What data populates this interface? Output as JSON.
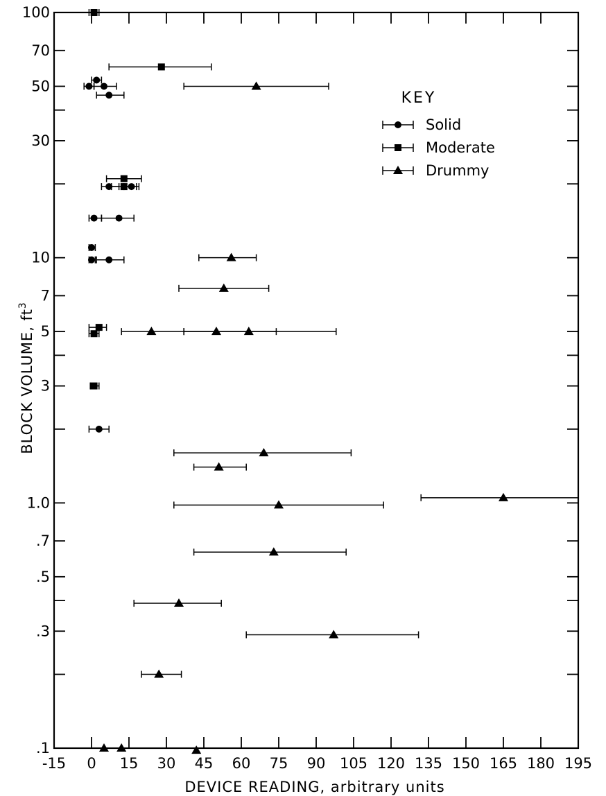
{
  "chart_data": {
    "type": "scatter",
    "title": "",
    "xlabel": "DEVICE  READING, arbitrary units",
    "ylabel": "BLOCK  VOLUME, ft",
    "ylabel_superscript": "3",
    "x_scale": "linear",
    "y_scale": "log",
    "xlim": [
      -15,
      195
    ],
    "ylim": [
      0.1,
      100
    ],
    "x_ticks": [
      -15,
      0,
      15,
      30,
      45,
      60,
      75,
      90,
      105,
      120,
      135,
      150,
      165,
      180,
      195
    ],
    "x_tick_labels": [
      "-15",
      "0",
      "15",
      "30",
      "45",
      "60",
      "75",
      "90",
      "105",
      "120",
      "135",
      "150",
      "165",
      "180",
      "195"
    ],
    "y_label_ticks": [
      0.1,
      0.3,
      0.5,
      0.7,
      1.0,
      3,
      5,
      7,
      10,
      30,
      50,
      70,
      100
    ],
    "y_tick_labels": [
      ".1",
      ".3",
      ".5",
      ".7",
      "1.0",
      "3",
      "5",
      "7",
      "10",
      "30",
      "50",
      "70",
      "100"
    ],
    "y_minor_ticks": [
      0.2,
      0.4,
      2,
      4,
      20,
      40
    ],
    "grid": false,
    "legend": {
      "title": "KEY",
      "position": "top-right",
      "entries": [
        "Solid",
        "Moderate",
        "Drummy"
      ]
    },
    "series": [
      {
        "name": "Solid",
        "marker": "circle",
        "points": [
          {
            "x": -1,
            "y": 50,
            "xmin": -3,
            "xmax": 1
          },
          {
            "x": 2,
            "y": 53,
            "xmin": 0,
            "xmax": 4
          },
          {
            "x": 5,
            "y": 50,
            "xmin": 1,
            "xmax": 10
          },
          {
            "x": 7,
            "y": 46,
            "xmin": 2,
            "xmax": 13
          },
          {
            "x": 7,
            "y": 19.5,
            "xmin": 4,
            "xmax": 11
          },
          {
            "x": 16,
            "y": 19.5,
            "xmin": 13,
            "xmax": 19
          },
          {
            "x": 1,
            "y": 14.5,
            "xmin": -1,
            "xmax": 4
          },
          {
            "x": 11,
            "y": 14.5,
            "xmin": 4,
            "xmax": 17
          },
          {
            "x": 0,
            "y": 11,
            "xmin": -1,
            "xmax": 1.5
          },
          {
            "x": 0,
            "y": 9.8,
            "xmin": -1,
            "xmax": 1.5
          },
          {
            "x": 7,
            "y": 9.8,
            "xmin": 2,
            "xmax": 13
          },
          {
            "x": 3,
            "y": 2,
            "xmin": -1,
            "xmax": 7
          }
        ]
      },
      {
        "name": "Moderate",
        "marker": "square",
        "points": [
          {
            "x": 1,
            "y": 100,
            "xmin": -1,
            "xmax": 3
          },
          {
            "x": 28,
            "y": 60,
            "xmin": 7,
            "xmax": 48
          },
          {
            "x": 13,
            "y": 21,
            "xmin": 6,
            "xmax": 20
          },
          {
            "x": 13,
            "y": 19.5,
            "xmin": 8,
            "xmax": 18
          },
          {
            "x": 3,
            "y": 5.2,
            "xmin": -1,
            "xmax": 6
          },
          {
            "x": 1,
            "y": 4.9,
            "xmin": -1,
            "xmax": 3
          },
          {
            "x": 1,
            "y": 3,
            "xmin": -0.5,
            "xmax": 3
          }
        ]
      },
      {
        "name": "Drummy",
        "marker": "triangle",
        "points": [
          {
            "x": 66,
            "y": 50,
            "xmin": 37,
            "xmax": 95
          },
          {
            "x": 56,
            "y": 10,
            "xmin": 43,
            "xmax": 66
          },
          {
            "x": 53,
            "y": 7.5,
            "xmin": 35,
            "xmax": 71
          },
          {
            "x": 24,
            "y": 5,
            "xmin": 12,
            "xmax": 37
          },
          {
            "x": 50,
            "y": 5,
            "xmin": 37,
            "xmax": 74
          },
          {
            "x": 63,
            "y": 5,
            "xmin": 37,
            "xmax": 98
          },
          {
            "x": 69,
            "y": 1.6,
            "xmin": 33,
            "xmax": 104
          },
          {
            "x": 51,
            "y": 1.4,
            "xmin": 41,
            "xmax": 62
          },
          {
            "x": 75,
            "y": 0.98,
            "xmin": 33,
            "xmax": 117
          },
          {
            "x": 165,
            "y": 1.05,
            "xmin": 132,
            "xmax": 200
          },
          {
            "x": 73,
            "y": 0.63,
            "xmin": 41,
            "xmax": 102
          },
          {
            "x": 35,
            "y": 0.39,
            "xmin": 17,
            "xmax": 52
          },
          {
            "x": 97,
            "y": 0.29,
            "xmin": 62,
            "xmax": 131
          },
          {
            "x": 27,
            "y": 0.2,
            "xmin": 20,
            "xmax": 36
          },
          {
            "x": 5,
            "y": 0.1
          },
          {
            "x": 12,
            "y": 0.1
          },
          {
            "x": 42,
            "y": 0.098
          }
        ]
      }
    ]
  }
}
